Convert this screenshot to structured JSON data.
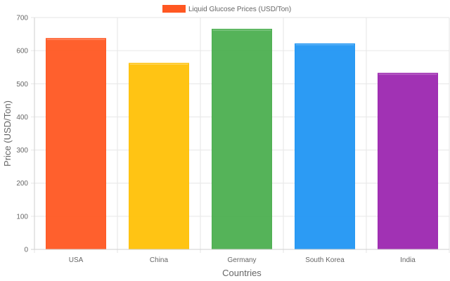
{
  "chart_data": {
    "type": "bar",
    "categories": [
      "USA",
      "China",
      "Germany",
      "South Korea",
      "India"
    ],
    "series": [
      {
        "name": "Liquid Glucose Prices (USD/Ton)",
        "values": [
          637,
          562,
          665,
          621,
          532
        ],
        "colors": [
          "#ff5722",
          "#ffc107",
          "#4caf50",
          "#2196f3",
          "#9c27b0"
        ]
      }
    ],
    "xlabel": "Countries",
    "ylabel": "Price (USD/Ton)",
    "ylim": [
      0,
      700
    ],
    "yticks": [
      0,
      100,
      200,
      300,
      400,
      500,
      600,
      700
    ],
    "grid": true,
    "legend": "top-center"
  }
}
